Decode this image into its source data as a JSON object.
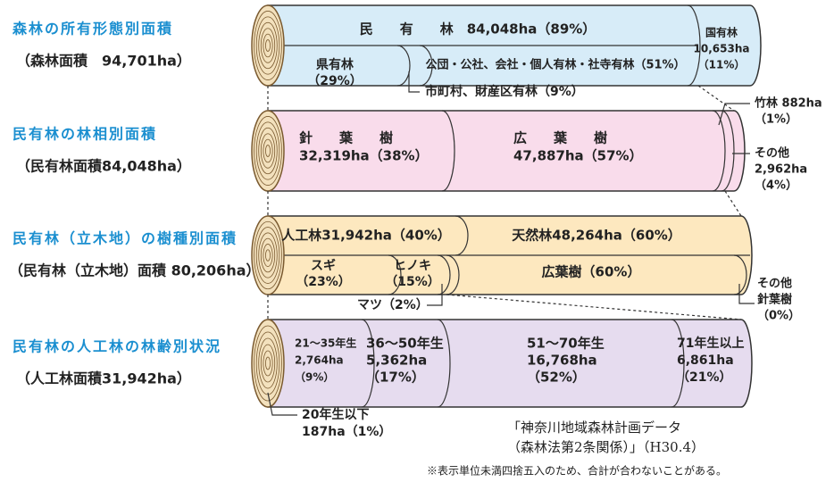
{
  "rows": [
    {
      "title": "森林の所有形態別面積",
      "subtitle": "（森林面積　94,701ha）",
      "labels": [
        {
          "lines": [
            "民　　有　　林　84,048ha（89%）"
          ]
        },
        {
          "lines": [
            "国有林",
            "10,653ha",
            "（11%）"
          ]
        },
        {
          "lines": [
            "県有林",
            "（29%）"
          ]
        },
        {
          "lines": [
            "公団・公社、会社・個人有林・社寺有林（51%）"
          ]
        },
        {
          "lines": [
            "市町村、財産区有林（9%）"
          ]
        }
      ]
    },
    {
      "title": "民有林の林相別面積",
      "subtitle": "（民有林面積84,048ha）",
      "labels": [
        {
          "lines": [
            "針　　葉　　樹",
            "32,319ha（38%）"
          ]
        },
        {
          "lines": [
            "広　　葉　　樹",
            "47,887ha（57%）"
          ]
        },
        {
          "lines": [
            "竹林 882ha",
            "（1%）"
          ]
        },
        {
          "lines": [
            "その他",
            "2,962ha",
            "（4%）"
          ]
        }
      ]
    },
    {
      "title": "民有林（立木地）の樹種別面積",
      "subtitle": "（民有林（立木地）面積 80,206ha）",
      "labels": [
        {
          "lines": [
            "人工林31,942ha（40%）"
          ]
        },
        {
          "lines": [
            "天然林48,264ha（60%）"
          ]
        },
        {
          "lines": [
            "スギ",
            "（23%）"
          ]
        },
        {
          "lines": [
            "ヒノキ",
            "（15%）"
          ]
        },
        {
          "lines": [
            "広葉樹（60%）"
          ]
        },
        {
          "lines": [
            "マツ（2%）"
          ]
        },
        {
          "lines": [
            "その他",
            "針葉樹",
            "（0%）"
          ]
        }
      ]
    },
    {
      "title": "民有林の人工林の林齢別状況",
      "subtitle": "（人工林面積31,942ha）",
      "labels": [
        {
          "lines": [
            "21〜35年生",
            "2,764ha",
            "（9%）"
          ]
        },
        {
          "lines": [
            "36〜50年生",
            "5,362ha",
            "（17%）"
          ]
        },
        {
          "lines": [
            "51〜70年生",
            "16,768ha",
            "（52%）"
          ]
        },
        {
          "lines": [
            "71年生以上",
            "6,861ha",
            "（21%）"
          ]
        },
        {
          "lines": [
            "20年生以下",
            "187ha（1%）"
          ]
        }
      ]
    }
  ],
  "source": [
    "「神奈川地域森林計画データ",
    "（森林法第2条関係）」（H30.4）"
  ],
  "note": "※表示単位未満四捨五入のため、合計が合わないことがある。"
}
